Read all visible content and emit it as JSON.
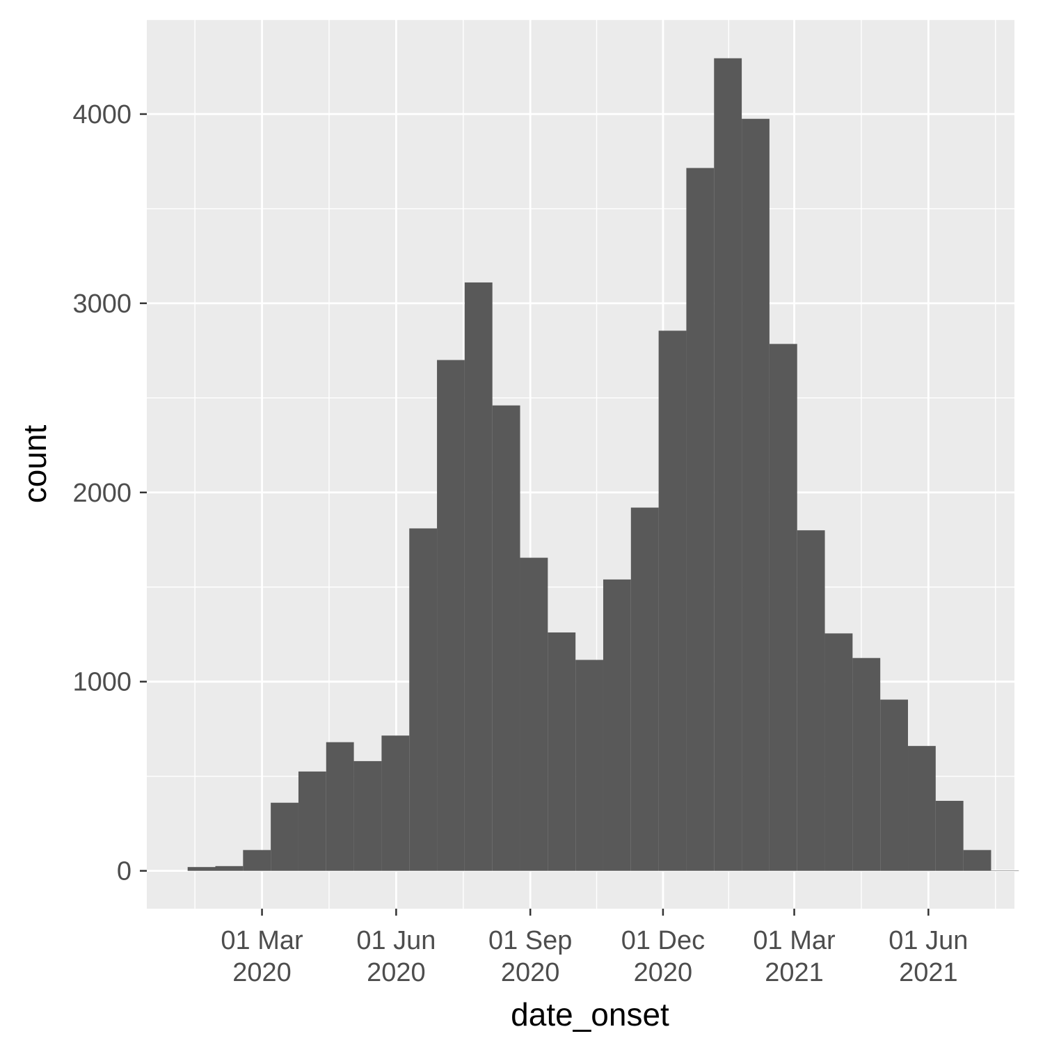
{
  "chart_data": {
    "type": "bar",
    "title": "",
    "xlabel": "date_onset",
    "ylabel": "count",
    "x_axis_kind": "date",
    "x_ticks": [
      {
        "date": "2020-03-01",
        "line1": "01 Mar",
        "line2": "2020"
      },
      {
        "date": "2020-06-01",
        "line1": "01 Jun",
        "line2": "2020"
      },
      {
        "date": "2020-09-01",
        "line1": "01 Sep",
        "line2": "2020"
      },
      {
        "date": "2020-12-01",
        "line1": "01 Dec",
        "line2": "2020"
      },
      {
        "date": "2021-03-01",
        "line1": "01 Mar",
        "line2": "2021"
      },
      {
        "date": "2021-06-01",
        "line1": "01 Jun",
        "line2": "2021"
      }
    ],
    "y_ticks": [
      0,
      1000,
      2000,
      3000,
      4000
    ],
    "xlim": [
      "2019-12-13",
      "2021-07-30"
    ],
    "ylim": [
      -200,
      4500
    ],
    "grid": true,
    "bins": [
      {
        "start": "2020-01-10",
        "end": "2020-01-29",
        "count": 20
      },
      {
        "start": "2020-01-29",
        "end": "2020-02-17",
        "count": 25
      },
      {
        "start": "2020-02-17",
        "end": "2020-03-07",
        "count": 110
      },
      {
        "start": "2020-03-07",
        "end": "2020-03-26",
        "count": 360
      },
      {
        "start": "2020-03-26",
        "end": "2020-04-14",
        "count": 525
      },
      {
        "start": "2020-04-14",
        "end": "2020-05-03",
        "count": 680
      },
      {
        "start": "2020-05-03",
        "end": "2020-05-22",
        "count": 580
      },
      {
        "start": "2020-05-22",
        "end": "2020-06-10",
        "count": 715
      },
      {
        "start": "2020-06-10",
        "end": "2020-06-29",
        "count": 1810
      },
      {
        "start": "2020-06-29",
        "end": "2020-07-18",
        "count": 2700
      },
      {
        "start": "2020-07-18",
        "end": "2020-08-06",
        "count": 3110
      },
      {
        "start": "2020-08-06",
        "end": "2020-08-25",
        "count": 2460
      },
      {
        "start": "2020-08-25",
        "end": "2020-09-13",
        "count": 1655
      },
      {
        "start": "2020-09-13",
        "end": "2020-10-02",
        "count": 1260
      },
      {
        "start": "2020-10-02",
        "end": "2020-10-21",
        "count": 1115
      },
      {
        "start": "2020-10-21",
        "end": "2020-11-09",
        "count": 1540
      },
      {
        "start": "2020-11-09",
        "end": "2020-11-28",
        "count": 1920
      },
      {
        "start": "2020-11-28",
        "end": "2020-12-17",
        "count": 2855
      },
      {
        "start": "2020-12-17",
        "end": "2021-01-05",
        "count": 3715
      },
      {
        "start": "2021-01-05",
        "end": "2021-01-24",
        "count": 4295
      },
      {
        "start": "2021-01-24",
        "end": "2021-02-12",
        "count": 3975
      },
      {
        "start": "2021-02-12",
        "end": "2021-03-03",
        "count": 2785
      },
      {
        "start": "2021-03-03",
        "end": "2021-03-22",
        "count": 1800
      },
      {
        "start": "2021-03-22",
        "end": "2021-04-10",
        "count": 1255
      },
      {
        "start": "2021-04-10",
        "end": "2021-04-29",
        "count": 1125
      },
      {
        "start": "2021-04-29",
        "end": "2021-05-18",
        "count": 905
      },
      {
        "start": "2021-05-18",
        "end": "2021-06-06",
        "count": 660
      },
      {
        "start": "2021-06-06",
        "end": "2021-06-25",
        "count": 370
      },
      {
        "start": "2021-06-25",
        "end": "2021-07-14",
        "count": 110
      },
      {
        "start": "2021-07-14",
        "end": "2021-08-02",
        "count": 2
      }
    ],
    "colors": {
      "panel_background": "#ebebeb",
      "grid": "#ffffff",
      "bar_fill": "#595959",
      "tick_text": "#4d4d4d",
      "axis_title": "#000000",
      "tick_mark": "#333333"
    }
  }
}
